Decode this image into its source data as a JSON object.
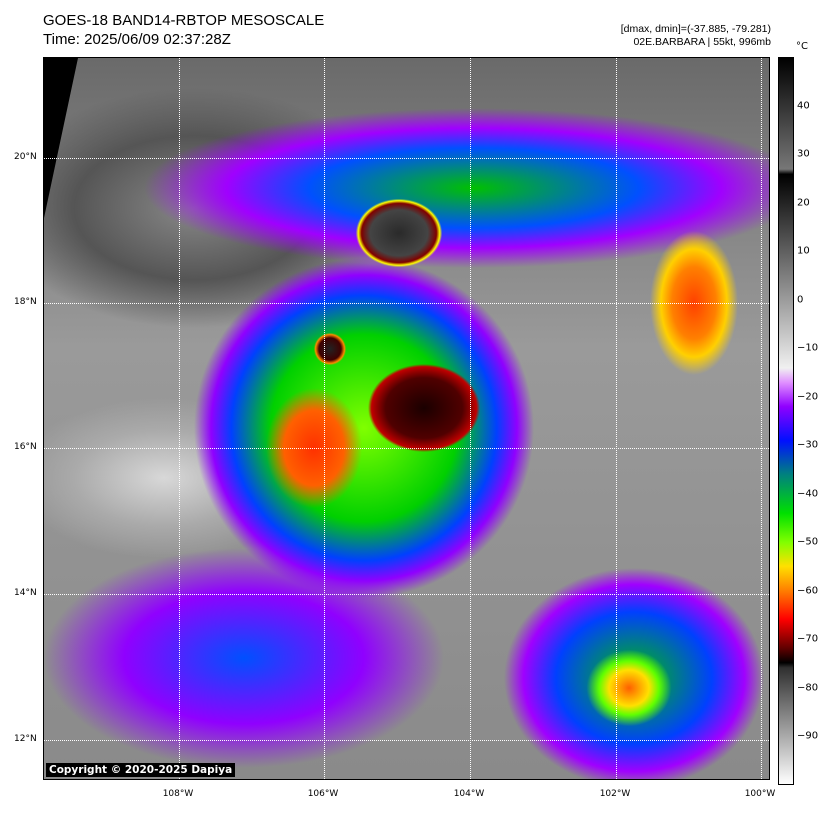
{
  "header": {
    "title": "GOES-18 BAND14-RBTOP MESOSCALE",
    "time": "Time: 2025/06/09 02:37:28Z",
    "range": "[dmax, dmin]=(-37.885, -79.281)",
    "storm": "02E.BARBARA | 55kt, 996mb"
  },
  "map": {
    "copyright": "Copyright © 2020-2025 Dapiya",
    "lon_labels": [
      "108°W",
      "106°W",
      "104°W",
      "102°W",
      "100°W"
    ],
    "lat_labels": [
      "20°N",
      "18°N",
      "16°N",
      "14°N",
      "12°N"
    ]
  },
  "colorbar": {
    "unit": "°C",
    "range": [
      50,
      -100
    ],
    "ticks": [
      "40",
      "30",
      "20",
      "10",
      "0",
      "−10",
      "−20",
      "−30",
      "−40",
      "−50",
      "−60",
      "−70",
      "−80",
      "−90"
    ]
  }
}
